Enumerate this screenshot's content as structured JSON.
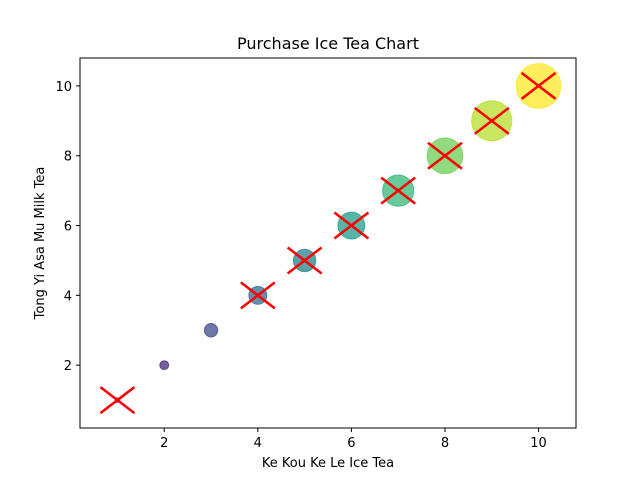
{
  "chart_data": {
    "type": "scatter",
    "title": "Purchase Ice Tea Chart",
    "xlabel": "Ke Kou Ke Le Ice Tea",
    "ylabel": "Tong Yi Asa Mu Milk Tea",
    "xlim": [
      0.2,
      10.8
    ],
    "ylim": [
      0.2,
      10.8
    ],
    "xticks": [
      2,
      4,
      6,
      8,
      10
    ],
    "yticks": [
      2,
      4,
      6,
      8,
      10
    ],
    "grid": false,
    "points": [
      {
        "x": 1,
        "y": 1,
        "size": 20,
        "color": "#440154",
        "crossed": true
      },
      {
        "x": 2,
        "y": 2,
        "size": 80,
        "color": "#482878",
        "crossed": false
      },
      {
        "x": 3,
        "y": 3,
        "size": 180,
        "color": "#3e4989",
        "crossed": false
      },
      {
        "x": 4,
        "y": 4,
        "size": 320,
        "color": "#31688e",
        "crossed": true
      },
      {
        "x": 5,
        "y": 5,
        "size": 500,
        "color": "#26828e",
        "crossed": true
      },
      {
        "x": 6,
        "y": 6,
        "size": 720,
        "color": "#1f9e89",
        "crossed": true
      },
      {
        "x": 7,
        "y": 7,
        "size": 980,
        "color": "#35b779",
        "crossed": true
      },
      {
        "x": 8,
        "y": 8,
        "size": 1280,
        "color": "#6ece58",
        "crossed": true
      },
      {
        "x": 9,
        "y": 9,
        "size": 1620,
        "color": "#b5de2b",
        "crossed": true
      },
      {
        "x": 10,
        "y": 10,
        "size": 2000,
        "color": "#fde725",
        "crossed": true
      }
    ],
    "cross_color": "#ff0000",
    "marker_alpha": 0.75
  }
}
